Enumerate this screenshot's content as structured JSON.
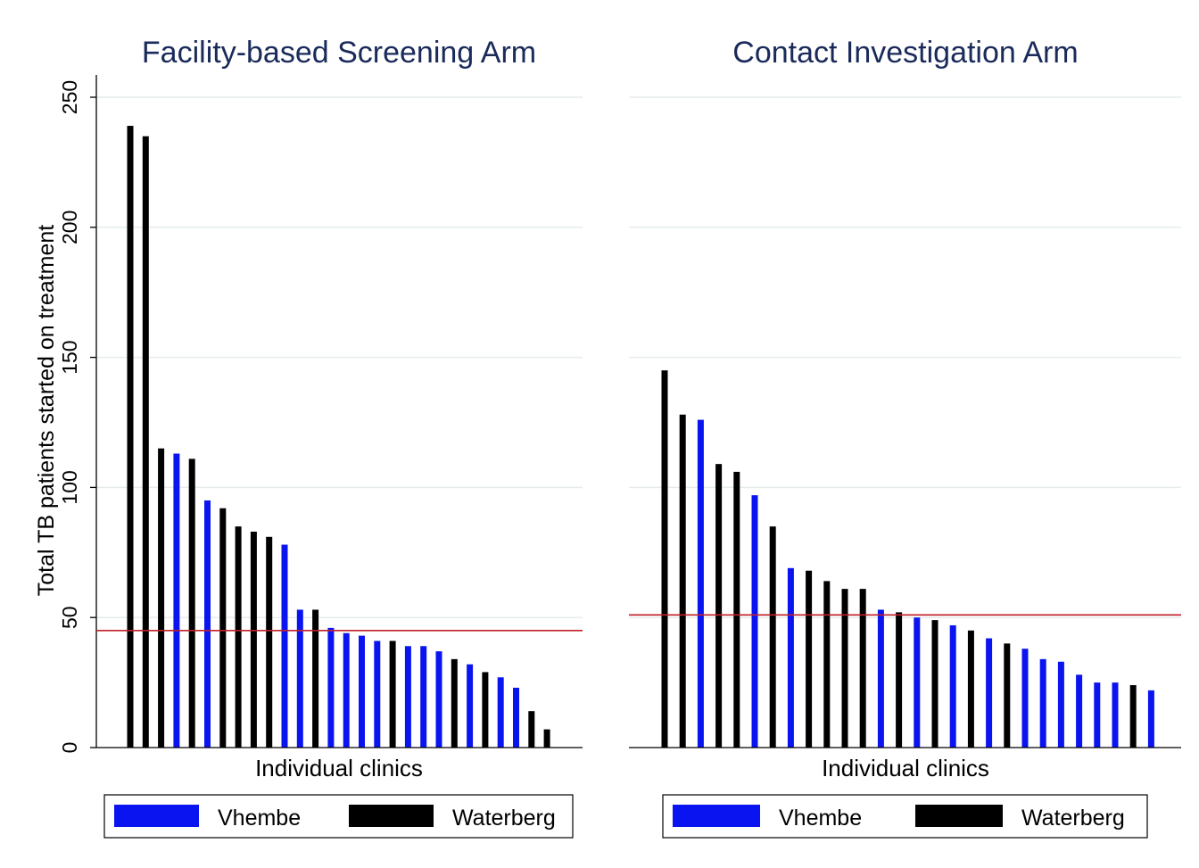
{
  "figure": {
    "ylabel": "Total TB patients started on treatment"
  },
  "colors": {
    "Vhembe": "#0a14f0",
    "Waterberg": "#000000",
    "reference_line": "#c0202a",
    "title": "#1a2a5a",
    "grid": "#e6ecec"
  },
  "chart_data": [
    {
      "type": "bar",
      "title": "Facility-based Screening Arm",
      "xlabel": "Individual clinics",
      "ylabel": "Total TB patients started on treatment",
      "ylim": [
        0,
        260
      ],
      "yticks": [
        0,
        50,
        100,
        150,
        200,
        250
      ],
      "grid": true,
      "legend": {
        "placement": "bottom",
        "entries": [
          "Vhembe",
          "Waterberg"
        ]
      },
      "reference_line": 45,
      "bars": [
        {
          "district": "Waterberg",
          "value": 239
        },
        {
          "district": "Waterberg",
          "value": 235
        },
        {
          "district": "Waterberg",
          "value": 115
        },
        {
          "district": "Vhembe",
          "value": 113
        },
        {
          "district": "Waterberg",
          "value": 111
        },
        {
          "district": "Vhembe",
          "value": 95
        },
        {
          "district": "Waterberg",
          "value": 92
        },
        {
          "district": "Waterberg",
          "value": 85
        },
        {
          "district": "Waterberg",
          "value": 83
        },
        {
          "district": "Waterberg",
          "value": 81
        },
        {
          "district": "Vhembe",
          "value": 78
        },
        {
          "district": "Vhembe",
          "value": 53
        },
        {
          "district": "Waterberg",
          "value": 53
        },
        {
          "district": "Vhembe",
          "value": 46
        },
        {
          "district": "Vhembe",
          "value": 44
        },
        {
          "district": "Vhembe",
          "value": 43
        },
        {
          "district": "Vhembe",
          "value": 41
        },
        {
          "district": "Waterberg",
          "value": 41
        },
        {
          "district": "Vhembe",
          "value": 39
        },
        {
          "district": "Vhembe",
          "value": 39
        },
        {
          "district": "Vhembe",
          "value": 37
        },
        {
          "district": "Waterberg",
          "value": 34
        },
        {
          "district": "Vhembe",
          "value": 32
        },
        {
          "district": "Waterberg",
          "value": 29
        },
        {
          "district": "Vhembe",
          "value": 27
        },
        {
          "district": "Vhembe",
          "value": 23
        },
        {
          "district": "Waterberg",
          "value": 14
        },
        {
          "district": "Waterberg",
          "value": 7
        }
      ]
    },
    {
      "type": "bar",
      "title": "Contact Investigation Arm",
      "xlabel": "Individual clinics",
      "ylim": [
        0,
        260
      ],
      "grid": true,
      "legend": {
        "placement": "bottom",
        "entries": [
          "Vhembe",
          "Waterberg"
        ]
      },
      "reference_line": 51,
      "bars": [
        {
          "district": "Waterberg",
          "value": 145
        },
        {
          "district": "Waterberg",
          "value": 128
        },
        {
          "district": "Vhembe",
          "value": 126
        },
        {
          "district": "Waterberg",
          "value": 109
        },
        {
          "district": "Waterberg",
          "value": 106
        },
        {
          "district": "Vhembe",
          "value": 97
        },
        {
          "district": "Waterberg",
          "value": 85
        },
        {
          "district": "Vhembe",
          "value": 69
        },
        {
          "district": "Waterberg",
          "value": 68
        },
        {
          "district": "Waterberg",
          "value": 64
        },
        {
          "district": "Waterberg",
          "value": 61
        },
        {
          "district": "Waterberg",
          "value": 61
        },
        {
          "district": "Vhembe",
          "value": 53
        },
        {
          "district": "Waterberg",
          "value": 52
        },
        {
          "district": "Vhembe",
          "value": 50
        },
        {
          "district": "Waterberg",
          "value": 49
        },
        {
          "district": "Vhembe",
          "value": 47
        },
        {
          "district": "Waterberg",
          "value": 45
        },
        {
          "district": "Vhembe",
          "value": 42
        },
        {
          "district": "Waterberg",
          "value": 40
        },
        {
          "district": "Vhembe",
          "value": 38
        },
        {
          "district": "Vhembe",
          "value": 34
        },
        {
          "district": "Vhembe",
          "value": 33
        },
        {
          "district": "Vhembe",
          "value": 28
        },
        {
          "district": "Vhembe",
          "value": 25
        },
        {
          "district": "Vhembe",
          "value": 25
        },
        {
          "district": "Waterberg",
          "value": 24
        },
        {
          "district": "Vhembe",
          "value": 22
        }
      ]
    }
  ]
}
